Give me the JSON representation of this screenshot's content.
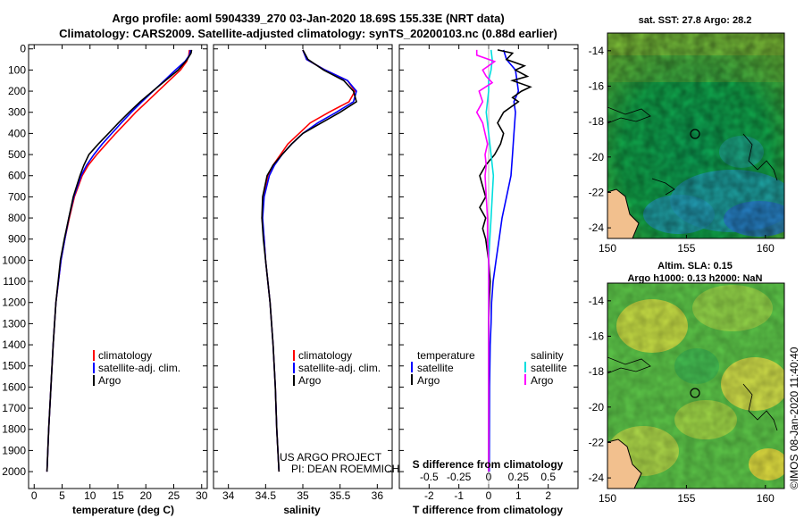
{
  "title": {
    "line1": "Argo profile: aoml 5904339_270 03-Jan-2020 18.69S 155.33E (NRT data)",
    "line2": "Climatology: CARS2009. Satellite-adjusted climatology: synTS_20200103.nc (0.88d earlier)"
  },
  "colors": {
    "climatology": "#ff0000",
    "satellite": "#0000ff",
    "argo": "#000000",
    "cyan": "#00dede",
    "magenta": "#ff00ff"
  },
  "depth_ticks": [
    "0",
    "100",
    "200",
    "300",
    "400",
    "500",
    "600",
    "700",
    "800",
    "900",
    "1000",
    "1100",
    "1200",
    "1300",
    "1400",
    "1500",
    "1600",
    "1700",
    "1800",
    "1900",
    "2000"
  ],
  "legend": {
    "climatology": "climatology",
    "satellite_adj": "satellite-adj. clim.",
    "argo": "Argo",
    "temperature": "temperature",
    "salinity": "salinity",
    "satellite": "satellite"
  },
  "credits": {
    "project": "US ARGO PROJECT",
    "pi": "PI: DEAN ROEMMICH"
  },
  "watermark": "©IMOS 08-Jan-2020 11:40:40",
  "map_sst": {
    "title": "sat. SST: 27.8 Argo: 28.2",
    "yticks": [
      "-14",
      "-16",
      "-18",
      "-20",
      "-22",
      "-24"
    ],
    "xticks": [
      "150",
      "155",
      "160"
    ]
  },
  "map_sla": {
    "title1": "Altim. SLA: 0.15",
    "title2": "Argo h1000: 0.13 h2000: NaN",
    "yticks": [
      "-14",
      "-16",
      "-18",
      "-20",
      "-22",
      "-24"
    ],
    "xticks": [
      "150",
      "155",
      "160"
    ]
  },
  "chart_data": [
    {
      "type": "line",
      "title": "",
      "xlabel": "temperature (deg C)",
      "ylabel": "depth",
      "xlim": [
        -1,
        31
      ],
      "ylim": [
        2080,
        -20
      ],
      "xticks": [
        "0",
        "5",
        "10",
        "15",
        "20",
        "25",
        "30"
      ],
      "xtick_values": [
        0,
        5,
        10,
        15,
        20,
        25,
        30
      ],
      "series": [
        {
          "name": "climatology",
          "color": "#ff0000",
          "depth": [
            5,
            30,
            60,
            100,
            150,
            200,
            250,
            300,
            350,
            400,
            450,
            500,
            550,
            600,
            700,
            800,
            900,
            1000,
            1200,
            1400,
            1600,
            1800,
            2000
          ],
          "values": [
            27.8,
            27.7,
            27.3,
            26.2,
            24.2,
            22.2,
            20.2,
            18.2,
            16.4,
            14.6,
            12.9,
            11.2,
            9.7,
            8.6,
            7.2,
            6.3,
            5.5,
            4.8,
            3.9,
            3.4,
            3.0,
            2.6,
            2.3
          ]
        },
        {
          "name": "satellite-adj. clim.",
          "color": "#0000ff",
          "depth": [
            5,
            30,
            60,
            100,
            150,
            200,
            250,
            300,
            350,
            400,
            450,
            500,
            550,
            600,
            700,
            800,
            900,
            1000,
            1200,
            1400,
            1600,
            1800,
            2000
          ],
          "values": [
            28.0,
            27.8,
            27.0,
            25.3,
            23.3,
            21.3,
            19.3,
            17.4,
            15.6,
            13.9,
            12.2,
            10.7,
            9.4,
            8.4,
            7.1,
            6.2,
            5.5,
            4.8,
            3.9,
            3.4,
            3.0,
            2.6,
            2.3
          ]
        },
        {
          "name": "Argo",
          "color": "#000000",
          "depth": [
            5,
            20,
            50,
            100,
            150,
            200,
            250,
            300,
            350,
            400,
            450,
            500,
            550,
            600,
            700,
            800,
            900,
            1000,
            1200,
            1400,
            1600,
            1800,
            2000
          ],
          "values": [
            28.2,
            28.1,
            27.4,
            25.8,
            23.5,
            21.2,
            19.0,
            17.0,
            15.1,
            13.3,
            11.5,
            9.8,
            8.9,
            8.2,
            7.0,
            6.2,
            5.4,
            4.7,
            3.9,
            3.4,
            3.0,
            2.6,
            2.3
          ]
        }
      ]
    },
    {
      "type": "line",
      "title": "",
      "xlabel": "salinity",
      "ylabel": "depth",
      "xlim": [
        33.8,
        36.2
      ],
      "ylim": [
        2080,
        -20
      ],
      "xticks": [
        "34",
        "34.5",
        "35",
        "35.5",
        "36"
      ],
      "xtick_values": [
        34,
        34.5,
        35,
        35.5,
        36
      ],
      "series": [
        {
          "name": "climatology",
          "color": "#ff0000",
          "depth": [
            5,
            50,
            100,
            150,
            200,
            250,
            300,
            350,
            400,
            450,
            500,
            550,
            600,
            700,
            800,
            900,
            1000,
            1200,
            1400,
            1600,
            1800,
            2000
          ],
          "values": [
            35.0,
            35.05,
            35.3,
            35.6,
            35.7,
            35.62,
            35.35,
            35.1,
            34.95,
            34.8,
            34.7,
            34.6,
            34.53,
            34.47,
            34.45,
            34.48,
            34.5,
            34.56,
            34.6,
            34.63,
            34.65,
            34.68
          ]
        },
        {
          "name": "satellite-adj. clim.",
          "color": "#0000ff",
          "depth": [
            5,
            50,
            100,
            150,
            200,
            250,
            300,
            350,
            400,
            450,
            500,
            550,
            600,
            700,
            800,
            900,
            1000,
            1200,
            1400,
            1600,
            1800,
            2000
          ],
          "values": [
            35.0,
            35.05,
            35.3,
            35.6,
            35.72,
            35.68,
            35.45,
            35.2,
            35.0,
            34.85,
            34.72,
            34.62,
            34.55,
            34.48,
            34.46,
            34.48,
            34.5,
            34.56,
            34.6,
            34.63,
            34.65,
            34.68
          ]
        },
        {
          "name": "Argo",
          "color": "#000000",
          "depth": [
            5,
            50,
            100,
            150,
            200,
            250,
            300,
            350,
            400,
            450,
            500,
            550,
            600,
            700,
            800,
            900,
            1000,
            1200,
            1400,
            1600,
            1800,
            2000
          ],
          "values": [
            35.0,
            35.07,
            35.28,
            35.55,
            35.68,
            35.72,
            35.5,
            35.25,
            35.0,
            34.85,
            34.72,
            34.6,
            34.52,
            34.46,
            34.45,
            34.47,
            34.5,
            34.56,
            34.6,
            34.63,
            34.65,
            34.68
          ]
        }
      ]
    },
    {
      "type": "line",
      "title": "S difference from climatology",
      "xlabel": "T difference from climatology",
      "ylabel": "depth",
      "xlim": [
        -3,
        3
      ],
      "ylim": [
        2080,
        -20
      ],
      "xticks": [
        "-2",
        "-1",
        "0",
        "1",
        "2"
      ],
      "xtick_values": [
        -2,
        -1,
        0,
        1,
        2
      ],
      "s_xticks": [
        "-0.5",
        "-0.25",
        "0",
        "0.25",
        "0.5"
      ],
      "s_xtick_values": [
        -0.5,
        -0.25,
        0,
        0.25,
        0.5
      ],
      "series": [
        {
          "name": "temperature satellite",
          "color": "#0000ff",
          "axis": "T",
          "depth": [
            5,
            50,
            100,
            150,
            200,
            250,
            300,
            400,
            500,
            600,
            700,
            800,
            900,
            1000,
            1100,
            1200,
            1300,
            1400,
            1600,
            2000
          ],
          "values": [
            0.5,
            0.6,
            0.9,
            0.95,
            1.0,
            0.85,
            0.9,
            0.85,
            0.8,
            0.75,
            0.6,
            0.45,
            0.35,
            0.25,
            0.15,
            0.1,
            0.08,
            0.05,
            0.03,
            0.02
          ]
        },
        {
          "name": "temperature Argo",
          "color": "#000000",
          "axis": "T",
          "depth": [
            5,
            20,
            50,
            80,
            100,
            130,
            150,
            180,
            200,
            230,
            250,
            300,
            350,
            400,
            450,
            500,
            550,
            600,
            650,
            700,
            750,
            800,
            850,
            900,
            950,
            1000,
            1100,
            1200,
            1300,
            1400,
            1600,
            2000
          ],
          "values": [
            0.3,
            0.8,
            0.6,
            1.2,
            0.9,
            1.3,
            0.8,
            1.4,
            1.1,
            0.8,
            1.0,
            0.5,
            0.3,
            0.5,
            0.4,
            0.2,
            -0.1,
            -0.3,
            -0.2,
            -0.1,
            -0.3,
            -0.1,
            -0.2,
            -0.1,
            -0.05,
            0.0,
            0.05,
            0.02,
            0.0,
            0.0,
            0.0,
            0.0
          ]
        },
        {
          "name": "salinity satellite",
          "color": "#00dede",
          "axis": "S",
          "depth": [
            5,
            50,
            100,
            150,
            200,
            300,
            400,
            500,
            600,
            700,
            800,
            900,
            1000,
            1200,
            2000
          ],
          "values": [
            0.02,
            0.03,
            0.02,
            0.0,
            0.0,
            -0.02,
            0.0,
            0.02,
            0.04,
            0.03,
            0.02,
            0.01,
            0.0,
            0.0,
            0.0
          ]
        },
        {
          "name": "salinity Argo",
          "color": "#ff00ff",
          "axis": "S",
          "depth": [
            5,
            30,
            60,
            100,
            130,
            160,
            200,
            250,
            300,
            350,
            400,
            450,
            500,
            550,
            600,
            700,
            800,
            900,
            1000,
            1100,
            1200,
            1300,
            1400,
            1600,
            2000
          ],
          "values": [
            -0.1,
            -0.1,
            0.05,
            -0.05,
            -0.02,
            0.03,
            -0.08,
            -0.05,
            -0.1,
            -0.05,
            -0.03,
            -0.01,
            -0.03,
            -0.02,
            -0.03,
            -0.02,
            -0.01,
            -0.01,
            0.0,
            0.0,
            0.0,
            0.0,
            0.0,
            0.0,
            0.0
          ]
        }
      ]
    }
  ]
}
